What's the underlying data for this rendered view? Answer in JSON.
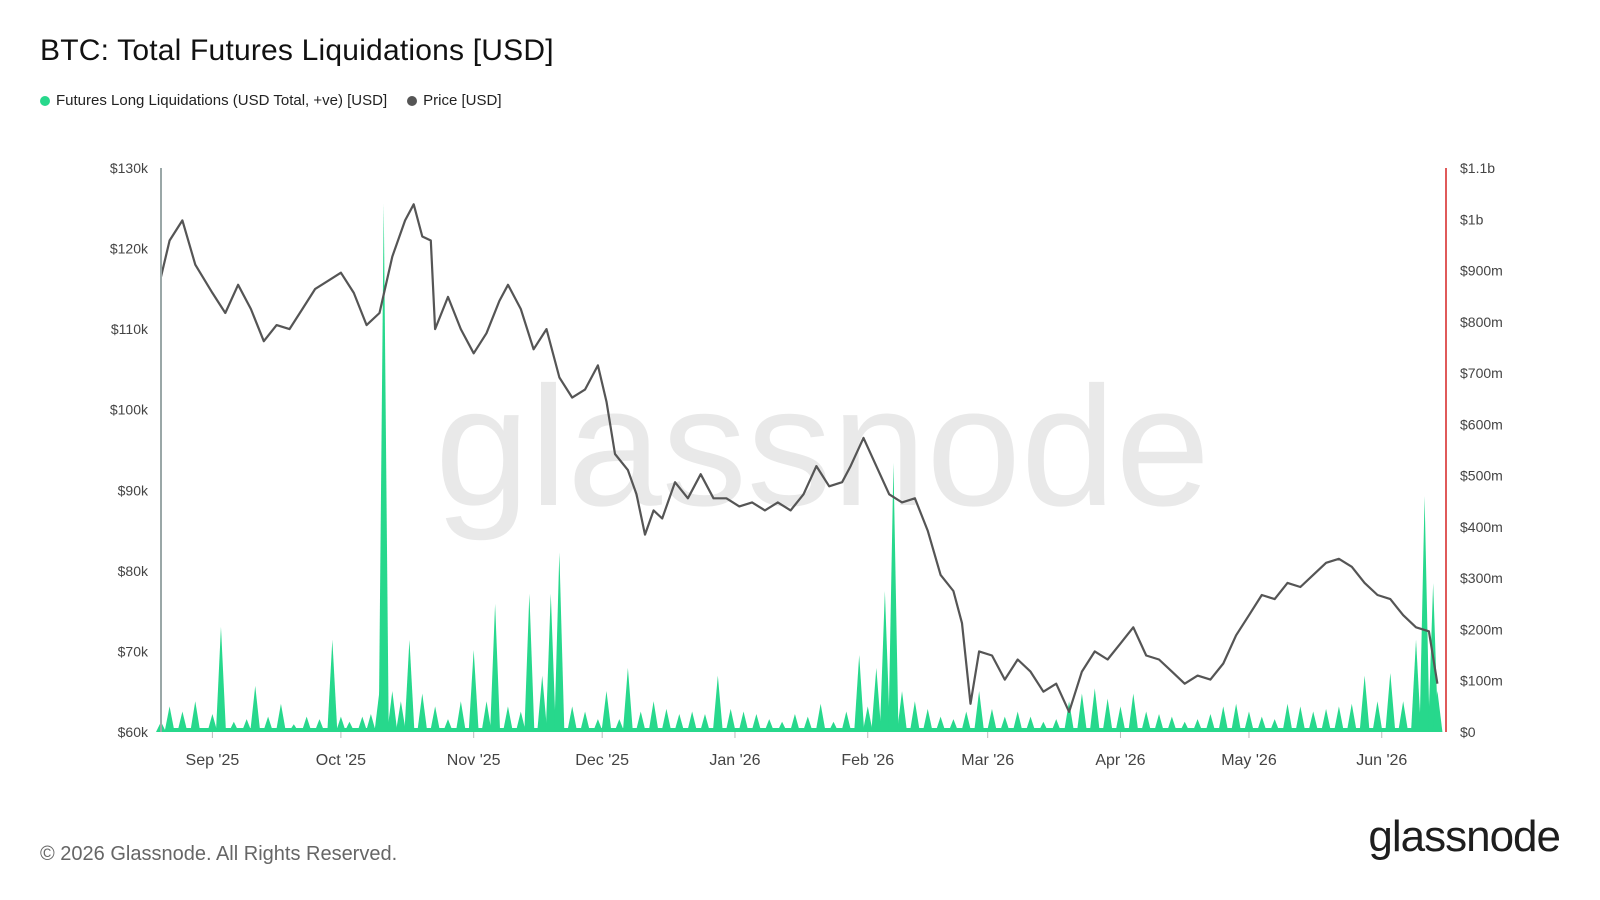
{
  "header": {
    "title": "BTC: Total Futures Liquidations [USD]"
  },
  "legend": [
    {
      "label": "Futures Long Liquidations (USD Total, +ve) [USD]",
      "color": "#27d88c"
    },
    {
      "label": "Price [USD]",
      "color": "#555555"
    }
  ],
  "footer": {
    "copyright": "© 2026 Glassnode. All Rights Reserved.",
    "logo": "glassnode"
  },
  "watermark": "glassnode",
  "chart_data": {
    "type": "line",
    "title": "BTC: Total Futures Liquidations [USD]",
    "x_ticks": [
      "Sep '25",
      "Oct '25",
      "Nov '25",
      "Dec '25",
      "Jan '26",
      "Feb '26",
      "Mar '26",
      "Apr '26",
      "May '26",
      "Jun '26"
    ],
    "left_axis": {
      "ticks": [
        "$130k",
        "$120k",
        "$110k",
        "$100k",
        "$90k",
        "$80k",
        "$70k",
        "$60k"
      ],
      "ylim": [
        60000,
        130000
      ]
    },
    "right_axis": {
      "ticks": [
        "$1.1b",
        "$1b",
        "$900m",
        "$800m",
        "$700m",
        "$600m",
        "$500m",
        "$400m",
        "$300m",
        "$200m",
        "$100m",
        "$0"
      ],
      "ylim": [
        0,
        1100000000
      ]
    },
    "colors": {
      "price": "#555555",
      "liquidations": "#27d88c",
      "right_axis_line": "#e05a5a",
      "left_axis_line": "#9aa7a7"
    },
    "series": [
      {
        "name": "Price [USD]",
        "axis": "left",
        "points": [
          [
            "2025-08-20",
            116500
          ],
          [
            "2025-08-22",
            121000
          ],
          [
            "2025-08-25",
            123500
          ],
          [
            "2025-08-28",
            118000
          ],
          [
            "2025-09-01",
            114500
          ],
          [
            "2025-09-04",
            112000
          ],
          [
            "2025-09-07",
            115500
          ],
          [
            "2025-09-10",
            112500
          ],
          [
            "2025-09-13",
            108500
          ],
          [
            "2025-09-16",
            110500
          ],
          [
            "2025-09-19",
            110000
          ],
          [
            "2025-09-22",
            112500
          ],
          [
            "2025-09-25",
            115000
          ],
          [
            "2025-09-28",
            116000
          ],
          [
            "2025-10-01",
            117000
          ],
          [
            "2025-10-04",
            114500
          ],
          [
            "2025-10-07",
            110500
          ],
          [
            "2025-10-10",
            112000
          ],
          [
            "2025-10-13",
            119000
          ],
          [
            "2025-10-16",
            123500
          ],
          [
            "2025-10-18",
            125500
          ],
          [
            "2025-10-20",
            121500
          ],
          [
            "2025-10-22",
            121000
          ],
          [
            "2025-10-23",
            110000
          ],
          [
            "2025-10-26",
            114000
          ],
          [
            "2025-10-29",
            110000
          ],
          [
            "2025-11-01",
            107000
          ],
          [
            "2025-11-04",
            109500
          ],
          [
            "2025-11-07",
            113500
          ],
          [
            "2025-11-09",
            115500
          ],
          [
            "2025-11-12",
            112500
          ],
          [
            "2025-11-15",
            107500
          ],
          [
            "2025-11-18",
            110000
          ],
          [
            "2025-11-21",
            104000
          ],
          [
            "2025-11-24",
            101500
          ],
          [
            "2025-11-27",
            102500
          ],
          [
            "2025-11-30",
            105500
          ],
          [
            "2025-12-02",
            101000
          ],
          [
            "2025-12-04",
            94500
          ],
          [
            "2025-12-07",
            92500
          ],
          [
            "2025-12-09",
            89500
          ],
          [
            "2025-12-11",
            84500
          ],
          [
            "2025-12-13",
            87500
          ],
          [
            "2025-12-15",
            86500
          ],
          [
            "2025-12-18",
            91000
          ],
          [
            "2025-12-21",
            89000
          ],
          [
            "2025-12-24",
            92000
          ],
          [
            "2025-12-27",
            89000
          ],
          [
            "2025-12-30",
            89000
          ],
          [
            "2026-01-02",
            88000
          ],
          [
            "2026-01-05",
            88500
          ],
          [
            "2026-01-08",
            87500
          ],
          [
            "2026-01-11",
            88500
          ],
          [
            "2026-01-14",
            87500
          ],
          [
            "2026-01-17",
            89500
          ],
          [
            "2026-01-20",
            93000
          ],
          [
            "2026-01-23",
            90500
          ],
          [
            "2026-01-26",
            91000
          ],
          [
            "2026-01-28",
            93000
          ],
          [
            "2026-01-31",
            96500
          ],
          [
            "2026-02-03",
            93000
          ],
          [
            "2026-02-06",
            89500
          ],
          [
            "2026-02-09",
            88500
          ],
          [
            "2026-02-12",
            89000
          ],
          [
            "2026-02-15",
            85000
          ],
          [
            "2026-02-18",
            79500
          ],
          [
            "2026-02-21",
            77500
          ],
          [
            "2026-02-23",
            73500
          ],
          [
            "2026-02-25",
            63500
          ],
          [
            "2026-02-27",
            70000
          ],
          [
            "2026-03-02",
            69500
          ],
          [
            "2026-03-05",
            66500
          ],
          [
            "2026-03-08",
            69000
          ],
          [
            "2026-03-11",
            67500
          ],
          [
            "2026-03-14",
            65000
          ],
          [
            "2026-03-17",
            66000
          ],
          [
            "2026-03-20",
            62500
          ],
          [
            "2026-03-23",
            67500
          ],
          [
            "2026-03-26",
            70000
          ],
          [
            "2026-03-29",
            69000
          ],
          [
            "2026-04-01",
            71000
          ],
          [
            "2026-04-04",
            73000
          ],
          [
            "2026-04-07",
            69500
          ],
          [
            "2026-04-10",
            69000
          ],
          [
            "2026-04-13",
            67500
          ],
          [
            "2026-04-16",
            66000
          ],
          [
            "2026-04-19",
            67000
          ],
          [
            "2026-04-22",
            66500
          ],
          [
            "2026-04-25",
            68500
          ],
          [
            "2026-04-28",
            72000
          ],
          [
            "2026-05-01",
            74500
          ],
          [
            "2026-05-04",
            77000
          ],
          [
            "2026-05-07",
            76500
          ],
          [
            "2026-05-10",
            78500
          ],
          [
            "2026-05-13",
            78000
          ],
          [
            "2026-05-16",
            79500
          ],
          [
            "2026-05-19",
            81000
          ],
          [
            "2026-05-22",
            81500
          ],
          [
            "2026-05-25",
            80500
          ],
          [
            "2026-05-28",
            78500
          ],
          [
            "2026-05-31",
            77000
          ],
          [
            "2026-06-03",
            76500
          ],
          [
            "2026-06-06",
            74500
          ],
          [
            "2026-06-09",
            73000
          ],
          [
            "2026-06-12",
            72500
          ],
          [
            "2026-06-14",
            66000
          ]
        ]
      },
      {
        "name": "Futures Long Liquidations (USD Total, +ve) [USD]",
        "axis": "right",
        "type": "area",
        "points": [
          [
            "2025-08-20",
            20000000
          ],
          [
            "2025-08-22",
            50000000
          ],
          [
            "2025-08-25",
            40000000
          ],
          [
            "2025-08-28",
            60000000
          ],
          [
            "2025-09-01",
            35000000
          ],
          [
            "2025-09-03",
            205000000
          ],
          [
            "2025-09-06",
            20000000
          ],
          [
            "2025-09-09",
            25000000
          ],
          [
            "2025-09-11",
            90000000
          ],
          [
            "2025-09-14",
            30000000
          ],
          [
            "2025-09-17",
            55000000
          ],
          [
            "2025-09-20",
            15000000
          ],
          [
            "2025-09-23",
            30000000
          ],
          [
            "2025-09-26",
            25000000
          ],
          [
            "2025-09-29",
            180000000
          ],
          [
            "2025-10-01",
            30000000
          ],
          [
            "2025-10-03",
            20000000
          ],
          [
            "2025-10-06",
            30000000
          ],
          [
            "2025-10-08",
            35000000
          ],
          [
            "2025-10-10",
            80000000
          ],
          [
            "2025-10-11",
            1030000000
          ],
          [
            "2025-10-13",
            80000000
          ],
          [
            "2025-10-15",
            60000000
          ],
          [
            "2025-10-17",
            180000000
          ],
          [
            "2025-10-20",
            75000000
          ],
          [
            "2025-10-23",
            50000000
          ],
          [
            "2025-10-26",
            25000000
          ],
          [
            "2025-10-29",
            60000000
          ],
          [
            "2025-11-01",
            160000000
          ],
          [
            "2025-11-04",
            60000000
          ],
          [
            "2025-11-06",
            250000000
          ],
          [
            "2025-11-09",
            50000000
          ],
          [
            "2025-11-12",
            40000000
          ],
          [
            "2025-11-14",
            270000000
          ],
          [
            "2025-11-17",
            110000000
          ],
          [
            "2025-11-19",
            270000000
          ],
          [
            "2025-11-21",
            350000000
          ],
          [
            "2025-11-24",
            50000000
          ],
          [
            "2025-11-27",
            40000000
          ],
          [
            "2025-11-30",
            25000000
          ],
          [
            "2025-12-02",
            80000000
          ],
          [
            "2025-12-05",
            25000000
          ],
          [
            "2025-12-07",
            125000000
          ],
          [
            "2025-12-10",
            40000000
          ],
          [
            "2025-12-13",
            60000000
          ],
          [
            "2025-12-16",
            45000000
          ],
          [
            "2025-12-19",
            35000000
          ],
          [
            "2025-12-22",
            40000000
          ],
          [
            "2025-12-25",
            35000000
          ],
          [
            "2025-12-28",
            110000000
          ],
          [
            "2025-12-31",
            45000000
          ],
          [
            "2026-01-03",
            40000000
          ],
          [
            "2026-01-06",
            35000000
          ],
          [
            "2026-01-09",
            25000000
          ],
          [
            "2026-01-12",
            20000000
          ],
          [
            "2026-01-15",
            35000000
          ],
          [
            "2026-01-18",
            30000000
          ],
          [
            "2026-01-21",
            55000000
          ],
          [
            "2026-01-24",
            20000000
          ],
          [
            "2026-01-27",
            40000000
          ],
          [
            "2026-01-30",
            150000000
          ],
          [
            "2026-02-01",
            50000000
          ],
          [
            "2026-02-03",
            125000000
          ],
          [
            "2026-02-05",
            275000000
          ],
          [
            "2026-02-07",
            525000000
          ],
          [
            "2026-02-09",
            80000000
          ],
          [
            "2026-02-12",
            60000000
          ],
          [
            "2026-02-15",
            45000000
          ],
          [
            "2026-02-18",
            30000000
          ],
          [
            "2026-02-21",
            25000000
          ],
          [
            "2026-02-24",
            40000000
          ],
          [
            "2026-02-27",
            80000000
          ],
          [
            "2026-03-02",
            45000000
          ],
          [
            "2026-03-05",
            30000000
          ],
          [
            "2026-03-08",
            40000000
          ],
          [
            "2026-03-11",
            30000000
          ],
          [
            "2026-03-14",
            20000000
          ],
          [
            "2026-03-17",
            25000000
          ],
          [
            "2026-03-20",
            60000000
          ],
          [
            "2026-03-23",
            75000000
          ],
          [
            "2026-03-26",
            85000000
          ],
          [
            "2026-03-29",
            65000000
          ],
          [
            "2026-04-01",
            50000000
          ],
          [
            "2026-04-04",
            75000000
          ],
          [
            "2026-04-07",
            40000000
          ],
          [
            "2026-04-10",
            35000000
          ],
          [
            "2026-04-13",
            30000000
          ],
          [
            "2026-04-16",
            20000000
          ],
          [
            "2026-04-19",
            25000000
          ],
          [
            "2026-04-22",
            35000000
          ],
          [
            "2026-04-25",
            50000000
          ],
          [
            "2026-04-28",
            55000000
          ],
          [
            "2026-05-01",
            40000000
          ],
          [
            "2026-05-04",
            30000000
          ],
          [
            "2026-05-07",
            25000000
          ],
          [
            "2026-05-10",
            55000000
          ],
          [
            "2026-05-13",
            50000000
          ],
          [
            "2026-05-16",
            40000000
          ],
          [
            "2026-05-19",
            45000000
          ],
          [
            "2026-05-22",
            50000000
          ],
          [
            "2026-05-25",
            55000000
          ],
          [
            "2026-05-28",
            110000000
          ],
          [
            "2026-05-31",
            60000000
          ],
          [
            "2026-06-03",
            115000000
          ],
          [
            "2026-06-06",
            60000000
          ],
          [
            "2026-06-09",
            180000000
          ],
          [
            "2026-06-11",
            460000000
          ],
          [
            "2026-06-13",
            290000000
          ],
          [
            "2026-06-14",
            80000000
          ]
        ]
      }
    ],
    "x_range": [
      "2025-08-20",
      "2026-06-16"
    ]
  }
}
